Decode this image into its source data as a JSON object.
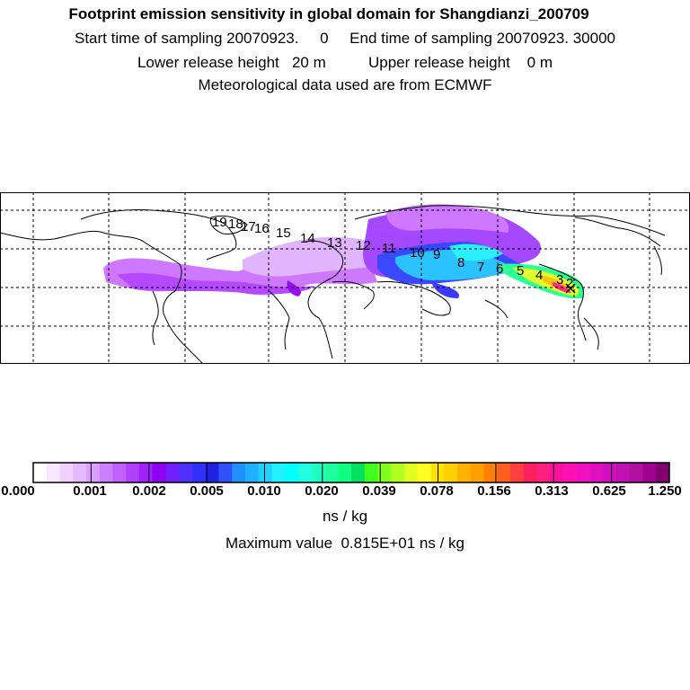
{
  "header": {
    "title": "Footprint emission sensitivity in global domain for Shangdianzi_200709",
    "line2": "Start time of sampling 20070923.     0     End time of sampling 20070923. 30000",
    "line3": "Lower release height   20 m          Upper release height    0 m",
    "line4": "Meteorological data used are from ECMWF"
  },
  "map": {
    "trajectory_labels": [
      "19",
      "18",
      "17",
      "16",
      "15",
      "14",
      "13",
      "12",
      "11",
      "10",
      "9",
      "8",
      "7",
      "6",
      "5",
      "4",
      "3",
      "2"
    ]
  },
  "colorbar": {
    "colors": [
      "#ffffff",
      "#f8e8ff",
      "#f0d0ff",
      "#e6b8ff",
      "#d9a0ff",
      "#cc80ff",
      "#c060ff",
      "#b040ff",
      "#a020ff",
      "#9000f0",
      "#7020ff",
      "#5030ff",
      "#3030ff",
      "#2020e0",
      "#3050ff",
      "#2090ff",
      "#20b0ff",
      "#20d0ff",
      "#20f0ff",
      "#00ffff",
      "#20ffe0",
      "#20ffc0",
      "#20ffa0",
      "#10ff80",
      "#00e060",
      "#40ff20",
      "#80ff20",
      "#b0ff20",
      "#e0ff20",
      "#ffff20",
      "#ffe000",
      "#ffd000",
      "#ffb000",
      "#ffa000",
      "#ff8000",
      "#ff6020",
      "#ff4040",
      "#ff2060",
      "#ff2080",
      "#ff10a0",
      "#ff10b0",
      "#f010c0",
      "#e010c0",
      "#d010c0",
      "#c010b0",
      "#b010a0",
      "#a00090",
      "#800070"
    ],
    "tick_labels": [
      "0.000",
      "0.001",
      "0.002",
      "0.005",
      "0.010",
      "0.020",
      "0.039",
      "0.078",
      "0.156",
      "0.313",
      "0.625",
      "1.250"
    ]
  },
  "footer": {
    "units": "ns / kg",
    "max_value": "Maximum value  0.815E+01 ns / kg"
  }
}
